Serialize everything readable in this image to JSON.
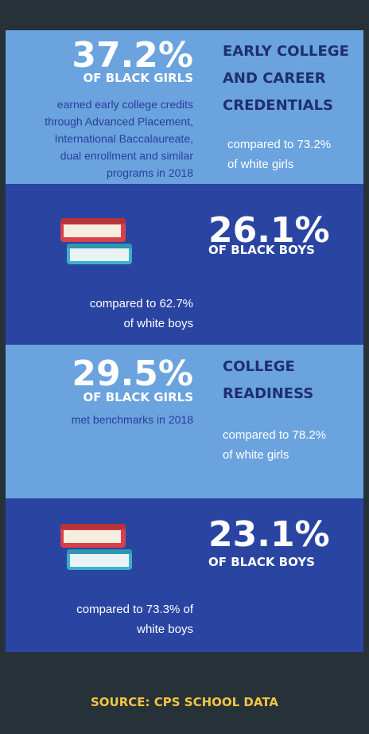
{
  "sections": [
    {
      "stat": "37.2%",
      "group": "OF BLACK GIRLS",
      "description": [
        "earned early college credits",
        "through Advanced Placement,",
        "International Baccalaureate,",
        "dual enrollment and similar",
        "programs in 2018"
      ],
      "heading": [
        "EARLY COLLEGE",
        "AND CAREER",
        "CREDENTIALS"
      ],
      "comparison": [
        "compared to 73.2%",
        "of white girls"
      ]
    },
    {
      "stat": "26.1%",
      "group": "OF BLACK BOYS",
      "comparison": [
        "compared to 62.7%",
        "of white boys"
      ]
    },
    {
      "stat": "29.5%",
      "group": "OF BLACK GIRLS",
      "description": [
        "met benchmarks in 2018"
      ],
      "heading": [
        "COLLEGE",
        "READINESS"
      ],
      "comparison": [
        "compared to 78.2%",
        "of white girls"
      ]
    },
    {
      "stat": "23.1%",
      "group": "OF BLACK BOYS",
      "comparison": [
        "compared to 73.3% of",
        "white boys"
      ]
    }
  ],
  "footer": {
    "source": "SOURCE: CPS SCHOOL DATA"
  }
}
